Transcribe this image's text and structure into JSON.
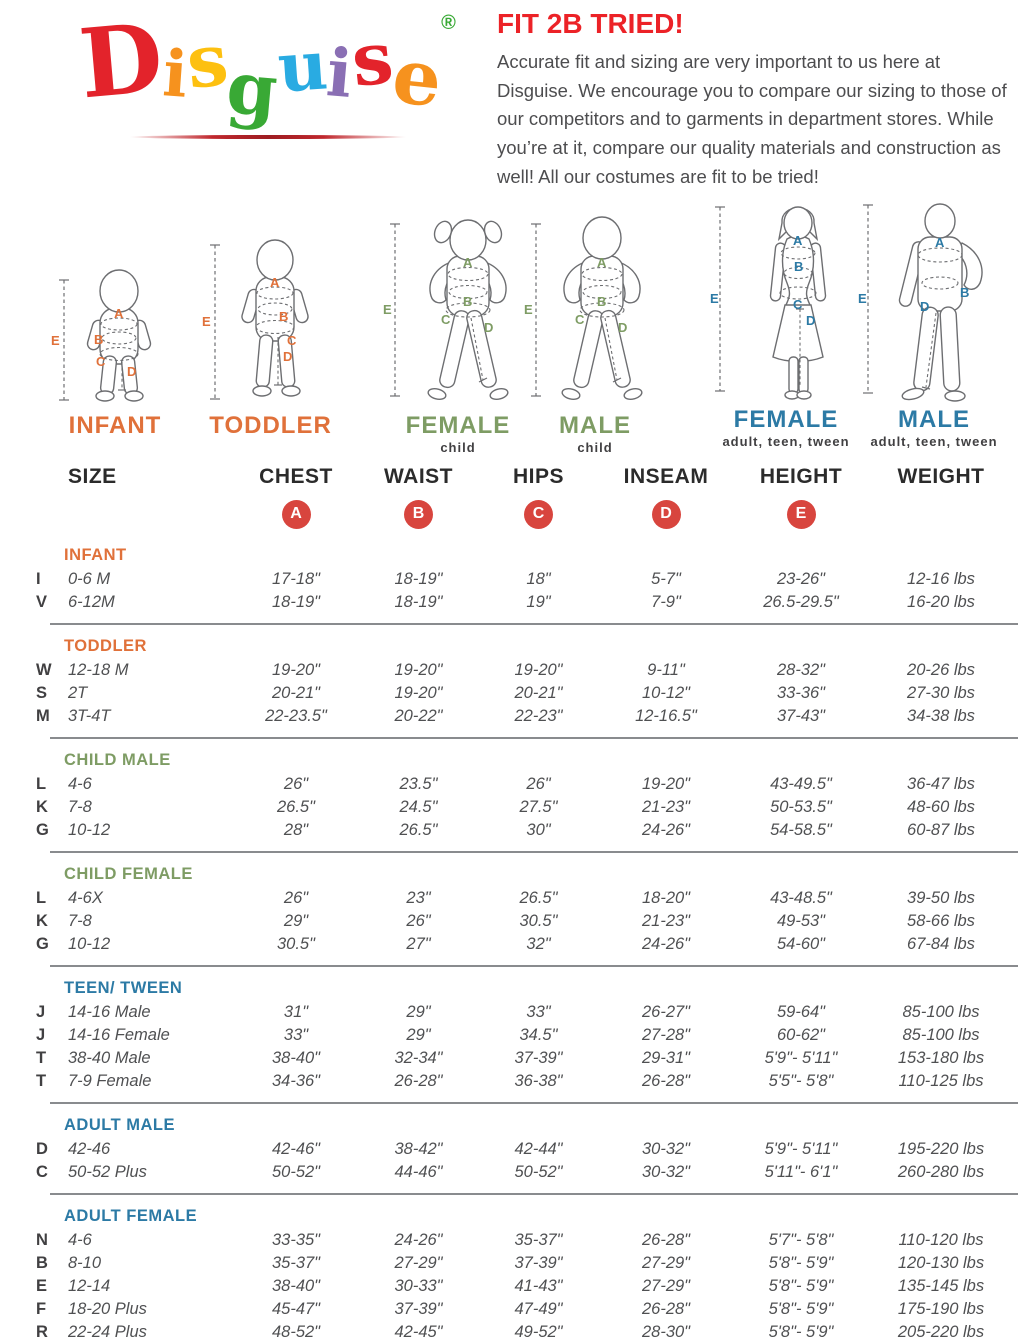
{
  "logo": {
    "letters": [
      {
        "ch": "D",
        "color": "#E3232B"
      },
      {
        "ch": "i",
        "color": "#F6921E"
      },
      {
        "ch": "s",
        "color": "#FDC010"
      },
      {
        "ch": "g",
        "color": "#39A935"
      },
      {
        "ch": "u",
        "color": "#29ABE2"
      },
      {
        "ch": "i",
        "color": "#8A6FB4"
      },
      {
        "ch": "s",
        "color": "#E3232B"
      },
      {
        "ch": "e",
        "color": "#F6921E"
      }
    ],
    "registered": "®",
    "registered_color": "#39A935"
  },
  "intro": {
    "title": "FIT 2B TRIED!",
    "title_color": "#EC2227",
    "body": "Accurate fit and sizing are very important to us here at Disguise. We encourage you to compare our sizing to those of our competitors and to garments in department stores. While you’re at it, compare our quality materials and construction as well! All our costumes are fit to be tried!"
  },
  "measure_letters": [
    "A",
    "B",
    "C",
    "D",
    "E"
  ],
  "figures": [
    {
      "label": "INFANT",
      "sublabel": "",
      "color": "#E0713A"
    },
    {
      "label": "TODDLER",
      "sublabel": "",
      "color": "#E0713A"
    },
    {
      "label": "FEMALE",
      "sublabel": "child",
      "color": "#7E9C64"
    },
    {
      "label": "MALE",
      "sublabel": "child",
      "color": "#7E9C64"
    },
    {
      "label": "FEMALE",
      "sublabel": "adult, teen, tween",
      "color": "#2C7AA5"
    },
    {
      "label": "MALE",
      "sublabel": "adult, teen, tween",
      "color": "#2C7AA5"
    }
  ],
  "table": {
    "columns": [
      "SIZE",
      "CHEST",
      "WAIST",
      "HIPS",
      "INSEAM",
      "HEIGHT",
      "WEIGHT"
    ],
    "badges": [
      "A",
      "B",
      "C",
      "D",
      "E"
    ],
    "badge_color": "#D8453E",
    "sections": [
      {
        "name": "INFANT",
        "color": "#E0713A",
        "rows": [
          {
            "code": "I",
            "cells": [
              "0-6 M",
              "17-18\"",
              "18-19\"",
              "18\"",
              "5-7\"",
              "23-26\"",
              "12-16 lbs"
            ]
          },
          {
            "code": "V",
            "cells": [
              "6-12M",
              "18-19\"",
              "18-19\"",
              "19\"",
              "7-9\"",
              "26.5-29.5\"",
              "16-20 lbs"
            ]
          }
        ]
      },
      {
        "name": "TODDLER",
        "color": "#E0713A",
        "rows": [
          {
            "code": "W",
            "cells": [
              "12-18 M",
              "19-20\"",
              "19-20\"",
              "19-20\"",
              "9-11\"",
              "28-32\"",
              "20-26 lbs"
            ]
          },
          {
            "code": "S",
            "cells": [
              "2T",
              "20-21\"",
              "19-20\"",
              "20-21\"",
              "10-12\"",
              "33-36\"",
              "27-30 lbs"
            ]
          },
          {
            "code": "M",
            "cells": [
              "3T-4T",
              "22-23.5\"",
              "20-22\"",
              "22-23\"",
              "12-16.5\"",
              "37-43\"",
              "34-38 lbs"
            ]
          }
        ]
      },
      {
        "name": "CHILD MALE",
        "color": "#7E9C64",
        "rows": [
          {
            "code": "L",
            "cells": [
              "4-6",
              "26\"",
              "23.5\"",
              "26\"",
              "19-20\"",
              "43-49.5\"",
              "36-47 lbs"
            ]
          },
          {
            "code": "K",
            "cells": [
              "7-8",
              "26.5\"",
              "24.5\"",
              "27.5\"",
              "21-23\"",
              "50-53.5\"",
              "48-60 lbs"
            ]
          },
          {
            "code": "G",
            "cells": [
              "10-12",
              "28\"",
              "26.5\"",
              "30\"",
              "24-26\"",
              "54-58.5\"",
              "60-87 lbs"
            ]
          }
        ]
      },
      {
        "name": "CHILD FEMALE",
        "color": "#7E9C64",
        "rows": [
          {
            "code": "L",
            "cells": [
              "4-6X",
              "26\"",
              "23\"",
              "26.5\"",
              "18-20\"",
              "43-48.5\"",
              "39-50 lbs"
            ]
          },
          {
            "code": "K",
            "cells": [
              "7-8",
              "29\"",
              "26\"",
              "30.5\"",
              "21-23\"",
              "49-53\"",
              "58-66 lbs"
            ]
          },
          {
            "code": "G",
            "cells": [
              "10-12",
              "30.5\"",
              "27\"",
              "32\"",
              "24-26\"",
              "54-60\"",
              "67-84 lbs"
            ]
          }
        ]
      },
      {
        "name": "TEEN/ TWEEN",
        "color": "#2C7AA5",
        "rows": [
          {
            "code": "J",
            "cells": [
              "14-16 Male",
              "31\"",
              "29\"",
              "33\"",
              "26-27\"",
              "59-64\"",
              "85-100 lbs"
            ]
          },
          {
            "code": "J",
            "cells": [
              "14-16 Female",
              "33\"",
              "29\"",
              "34.5\"",
              "27-28\"",
              "60-62\"",
              "85-100 lbs"
            ]
          },
          {
            "code": "T",
            "cells": [
              "38-40 Male",
              "38-40\"",
              "32-34\"",
              "37-39\"",
              "29-31\"",
              "5'9\"- 5'11\"",
              "153-180 lbs"
            ]
          },
          {
            "code": "T",
            "cells": [
              "7-9 Female",
              "34-36\"",
              "26-28\"",
              "36-38\"",
              "26-28\"",
              "5'5\"- 5'8\"",
              "110-125 lbs"
            ]
          }
        ]
      },
      {
        "name": "ADULT MALE",
        "color": "#2C7AA5",
        "rows": [
          {
            "code": "D",
            "cells": [
              "42-46",
              "42-46\"",
              "38-42\"",
              "42-44\"",
              "30-32\"",
              "5'9\"- 5'11\"",
              "195-220 lbs"
            ]
          },
          {
            "code": "C",
            "cells": [
              "50-52 Plus",
              "50-52\"",
              "44-46\"",
              "50-52\"",
              "30-32\"",
              "5'11\"- 6'1\"",
              "260-280 lbs"
            ]
          }
        ]
      },
      {
        "name": "ADULT FEMALE",
        "color": "#2C7AA5",
        "rows": [
          {
            "code": "N",
            "cells": [
              "4-6",
              "33-35\"",
              "24-26\"",
              "35-37\"",
              "26-28\"",
              "5'7\"- 5'8\"",
              "110-120 lbs"
            ]
          },
          {
            "code": "B",
            "cells": [
              "8-10",
              "35-37\"",
              "27-29\"",
              "37-39\"",
              "27-29\"",
              "5'8\"- 5'9\"",
              "120-130 lbs"
            ]
          },
          {
            "code": "E",
            "cells": [
              "12-14",
              "38-40\"",
              "30-33\"",
              "41-43\"",
              "27-29\"",
              "5'8\"- 5'9\"",
              "135-145 lbs"
            ]
          },
          {
            "code": "F",
            "cells": [
              "18-20 Plus",
              "45-47\"",
              "37-39\"",
              "47-49\"",
              "26-28\"",
              "5'8\"- 5'9\"",
              "175-190 lbs"
            ]
          },
          {
            "code": "R",
            "cells": [
              "22-24 Plus",
              "48-52\"",
              "42-45\"",
              "49-52\"",
              "28-30\"",
              "5'8\"- 5'9\"",
              "205-220 lbs"
            ]
          }
        ]
      }
    ]
  }
}
